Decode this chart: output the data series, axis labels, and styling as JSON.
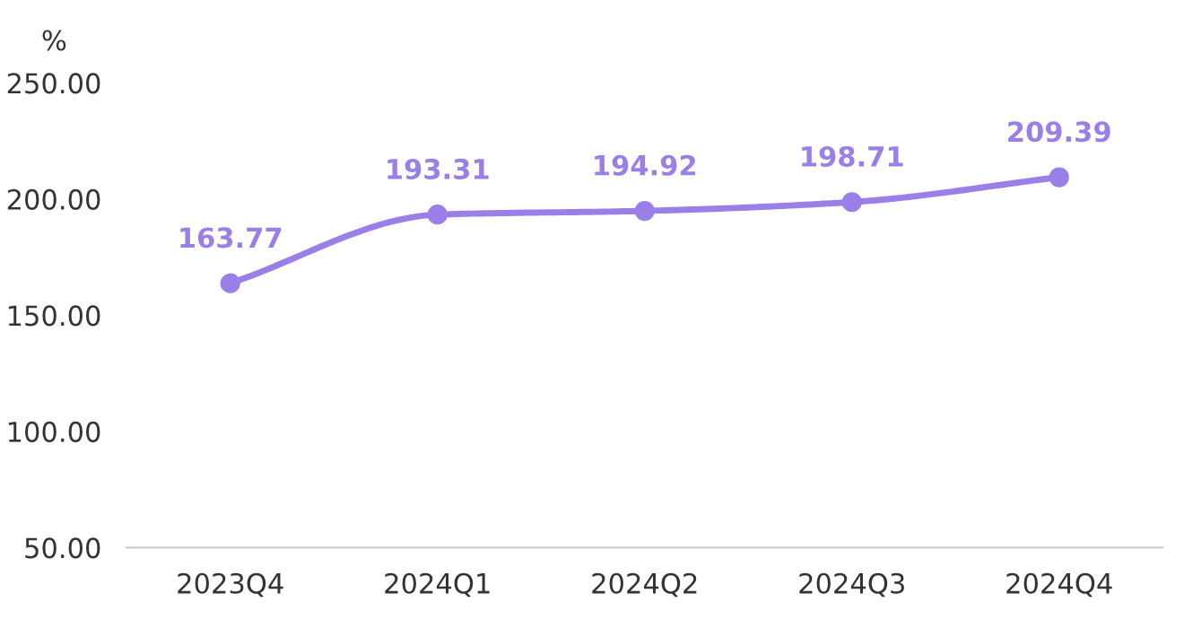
{
  "chart_data": {
    "type": "line",
    "ylabel": "%",
    "categories": [
      "2023Q4",
      "2024Q1",
      "2024Q2",
      "2024Q3",
      "2024Q4"
    ],
    "series": [
      {
        "color": "#9b7fe8",
        "values": [
          163.77,
          193.31,
          194.92,
          198.71,
          209.39
        ]
      }
    ],
    "ylim": [
      50,
      250
    ],
    "yticks": [
      {
        "value": 50,
        "label": "50.00"
      },
      {
        "value": 100,
        "label": "100.00"
      },
      {
        "value": 150,
        "label": "150.00"
      },
      {
        "value": 200,
        "label": "200.00"
      },
      {
        "value": 250,
        "label": "250.00"
      }
    ],
    "data_labels": true,
    "marker": "circle",
    "line_style": "solid",
    "grid": false,
    "legend": false
  }
}
